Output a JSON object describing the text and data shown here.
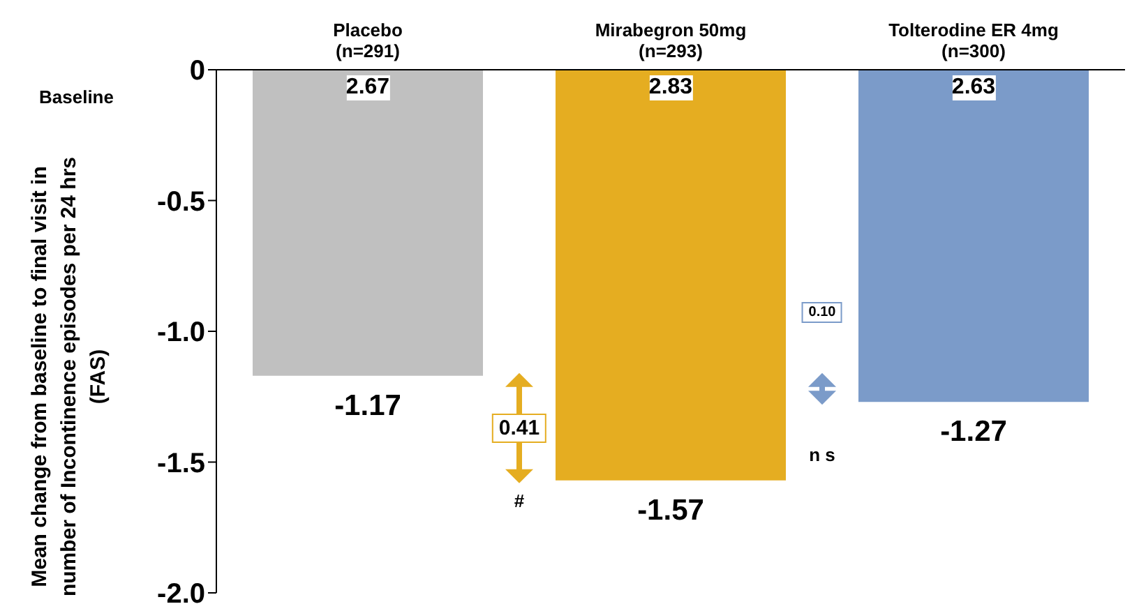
{
  "chart_data": {
    "type": "bar",
    "ylabel": "Mean change from baseline to final visit in  number of Incontinence episodes per 24 hrs (FAS)",
    "categories": [
      "Placebo\n(n=291)",
      "Mirabegron 50mg\n(n=293)",
      "Tolterodine ER 4mg\n(n=300)"
    ],
    "values": [
      -1.17,
      -1.57,
      -1.27
    ],
    "colors": [
      "#c0c0c0",
      "#e5ad21",
      "#7b9bc9"
    ],
    "data_labels": true,
    "ylim": [
      -2,
      0
    ],
    "yticks": [
      0,
      -0.5,
      {
        "value": -1,
        "label": "-1.0"
      },
      -1.5,
      {
        "value": -2,
        "label": "-2.0"
      }
    ],
    "grid": false,
    "annotations": [
      "Baseline",
      {
        "text": "2.67",
        "x": "Placebo\n(n=291)",
        "y": -0.07
      },
      {
        "text": "2.83",
        "x": "Mirabegron 50mg\n(n=293)",
        "y": -0.07
      },
      {
        "text": "2.63",
        "x": "Tolterodine ER 4mg\n(n=300)",
        "y": -0.07
      },
      "0.41",
      "#",
      "0.10",
      "n s"
    ]
  }
}
